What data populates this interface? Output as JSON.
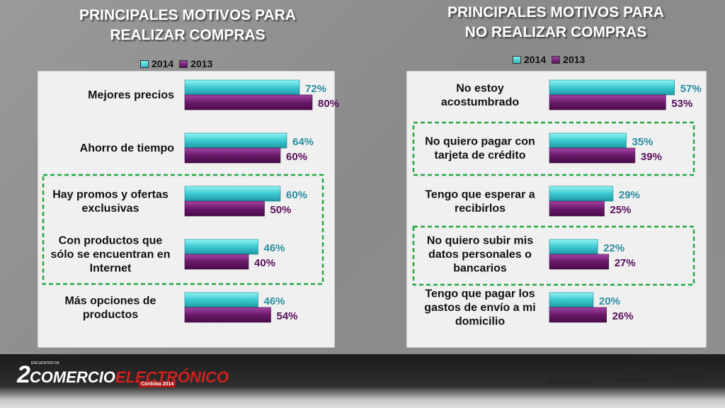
{
  "left": {
    "title": "PRINCIPALES MOTIVOS PARA REALIZAR COMPRAS",
    "title_lines": [
      "PRINCIPALES MOTIVOS PARA",
      "REALIZAR COMPRAS"
    ],
    "legend": [
      "2014",
      "2013"
    ]
  },
  "right": {
    "title": "PRINCIPALES MOTIVOS PARA NO REALIZAR COMPRAS",
    "title_lines": [
      "PRINCIPALES MOTIVOS PARA",
      "NO REALIZAR COMPRAS"
    ],
    "legend": [
      "2014",
      "2013"
    ]
  },
  "colors": {
    "y2014": "#3cc8d0",
    "y2013": "#6a1a6a",
    "label2014": "#2a8ea0",
    "label2013": "#5a0f5a",
    "highlight": "#22aa44"
  },
  "chart_data": [
    {
      "type": "bar",
      "orientation": "horizontal",
      "title": "PRINCIPALES MOTIVOS PARA REALIZAR COMPRAS",
      "categories": [
        [
          "Mejores precios"
        ],
        [
          "Ahorro de tiempo"
        ],
        [
          "Hay promos y ofertas",
          "exclusivas"
        ],
        [
          "Con productos que",
          "sólo se encuentran en",
          "Internet"
        ],
        [
          "Más opciones de",
          "productos"
        ]
      ],
      "series": [
        {
          "name": "2014",
          "values": [
            72,
            64,
            60,
            46,
            46
          ],
          "labels": [
            "72%",
            "64%",
            "60%",
            "46%",
            "46%"
          ]
        },
        {
          "name": "2013",
          "values": [
            80,
            60,
            50,
            40,
            54
          ],
          "labels": [
            "80%",
            "60%",
            "50%",
            "40%",
            "54%"
          ]
        }
      ],
      "highlighted": [
        2,
        3
      ],
      "xlim": [
        0,
        100
      ],
      "legend": "top"
    },
    {
      "type": "bar",
      "orientation": "horizontal",
      "title": "PRINCIPALES MOTIVOS PARA NO REALIZAR COMPRAS",
      "categories": [
        [
          "No estoy",
          "acostumbrado"
        ],
        [
          "No quiero pagar con",
          "tarjeta de crédito"
        ],
        [
          "Tengo que esperar a",
          "recibirlos"
        ],
        [
          "No quiero subir mis",
          "datos personales o",
          "bancarios"
        ],
        [
          "Tengo que pagar los",
          "gastos de envío a mi",
          "domicilio"
        ]
      ],
      "series": [
        {
          "name": "2014",
          "values": [
            57,
            35,
            29,
            22,
            20
          ],
          "labels": [
            "57%",
            "35%",
            "29%",
            "22%",
            "20%"
          ]
        },
        {
          "name": "2013",
          "values": [
            53,
            39,
            25,
            27,
            26
          ],
          "labels": [
            "53%",
            "39%",
            "25%",
            "27%",
            "26%"
          ]
        }
      ],
      "highlighted": [
        1,
        3
      ],
      "xlim": [
        0,
        100
      ],
      "legend": "top"
    }
  ],
  "footer": {
    "event_number": "2",
    "event_small": "ENCUENTRO DE",
    "event_word1": "COMERCIO",
    "event_word2": "ELECTRÓNICO",
    "event_place": "Córdoba 2014",
    "sponsors": [
      "ANDREANI",
      "Fundación Mediterránea",
      "IERAL"
    ]
  }
}
